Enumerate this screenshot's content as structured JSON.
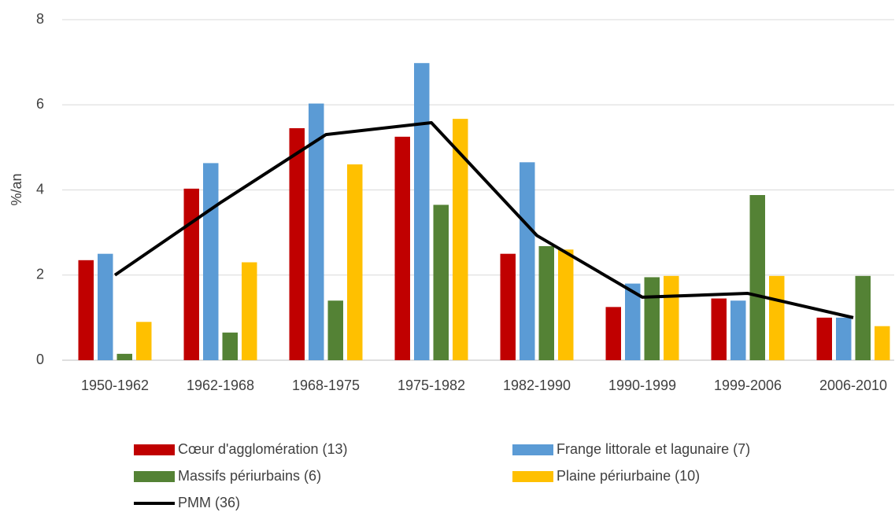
{
  "chart_data": {
    "type": "bar",
    "y_label": "%/an",
    "categories": [
      "1950-1962",
      "1962-1968",
      "1968-1975",
      "1975-1982",
      "1982-1990",
      "1990-1999",
      "1999-2006",
      "2006-2010"
    ],
    "series": [
      {
        "name": "Cœur d'agglomération (13)",
        "color": "#c00000",
        "values": [
          2.35,
          4.03,
          5.45,
          5.25,
          2.5,
          1.25,
          1.45,
          1.0
        ]
      },
      {
        "name": "Frange littorale et lagunaire (7)",
        "color": "#5b9bd5",
        "values": [
          2.5,
          4.63,
          6.03,
          6.98,
          4.65,
          1.8,
          1.4,
          1.0
        ]
      },
      {
        "name": "Massifs périurbains (6)",
        "color": "#548235",
        "values": [
          0.15,
          0.65,
          1.4,
          3.65,
          2.68,
          1.95,
          3.88,
          1.98
        ]
      },
      {
        "name": "Plaine périurbaine (10)",
        "color": "#ffc000",
        "values": [
          0.9,
          2.3,
          4.6,
          5.67,
          2.6,
          1.98,
          1.98,
          0.8
        ]
      },
      {
        "name": "PMM (36)",
        "color": "#000000",
        "type": "line",
        "values": [
          2.0,
          3.7,
          5.3,
          5.58,
          2.93,
          1.48,
          1.57,
          1.0
        ]
      }
    ],
    "ylim": [
      0,
      8
    ],
    "yticks": [
      0,
      2,
      4,
      6,
      8
    ],
    "grid": true
  }
}
